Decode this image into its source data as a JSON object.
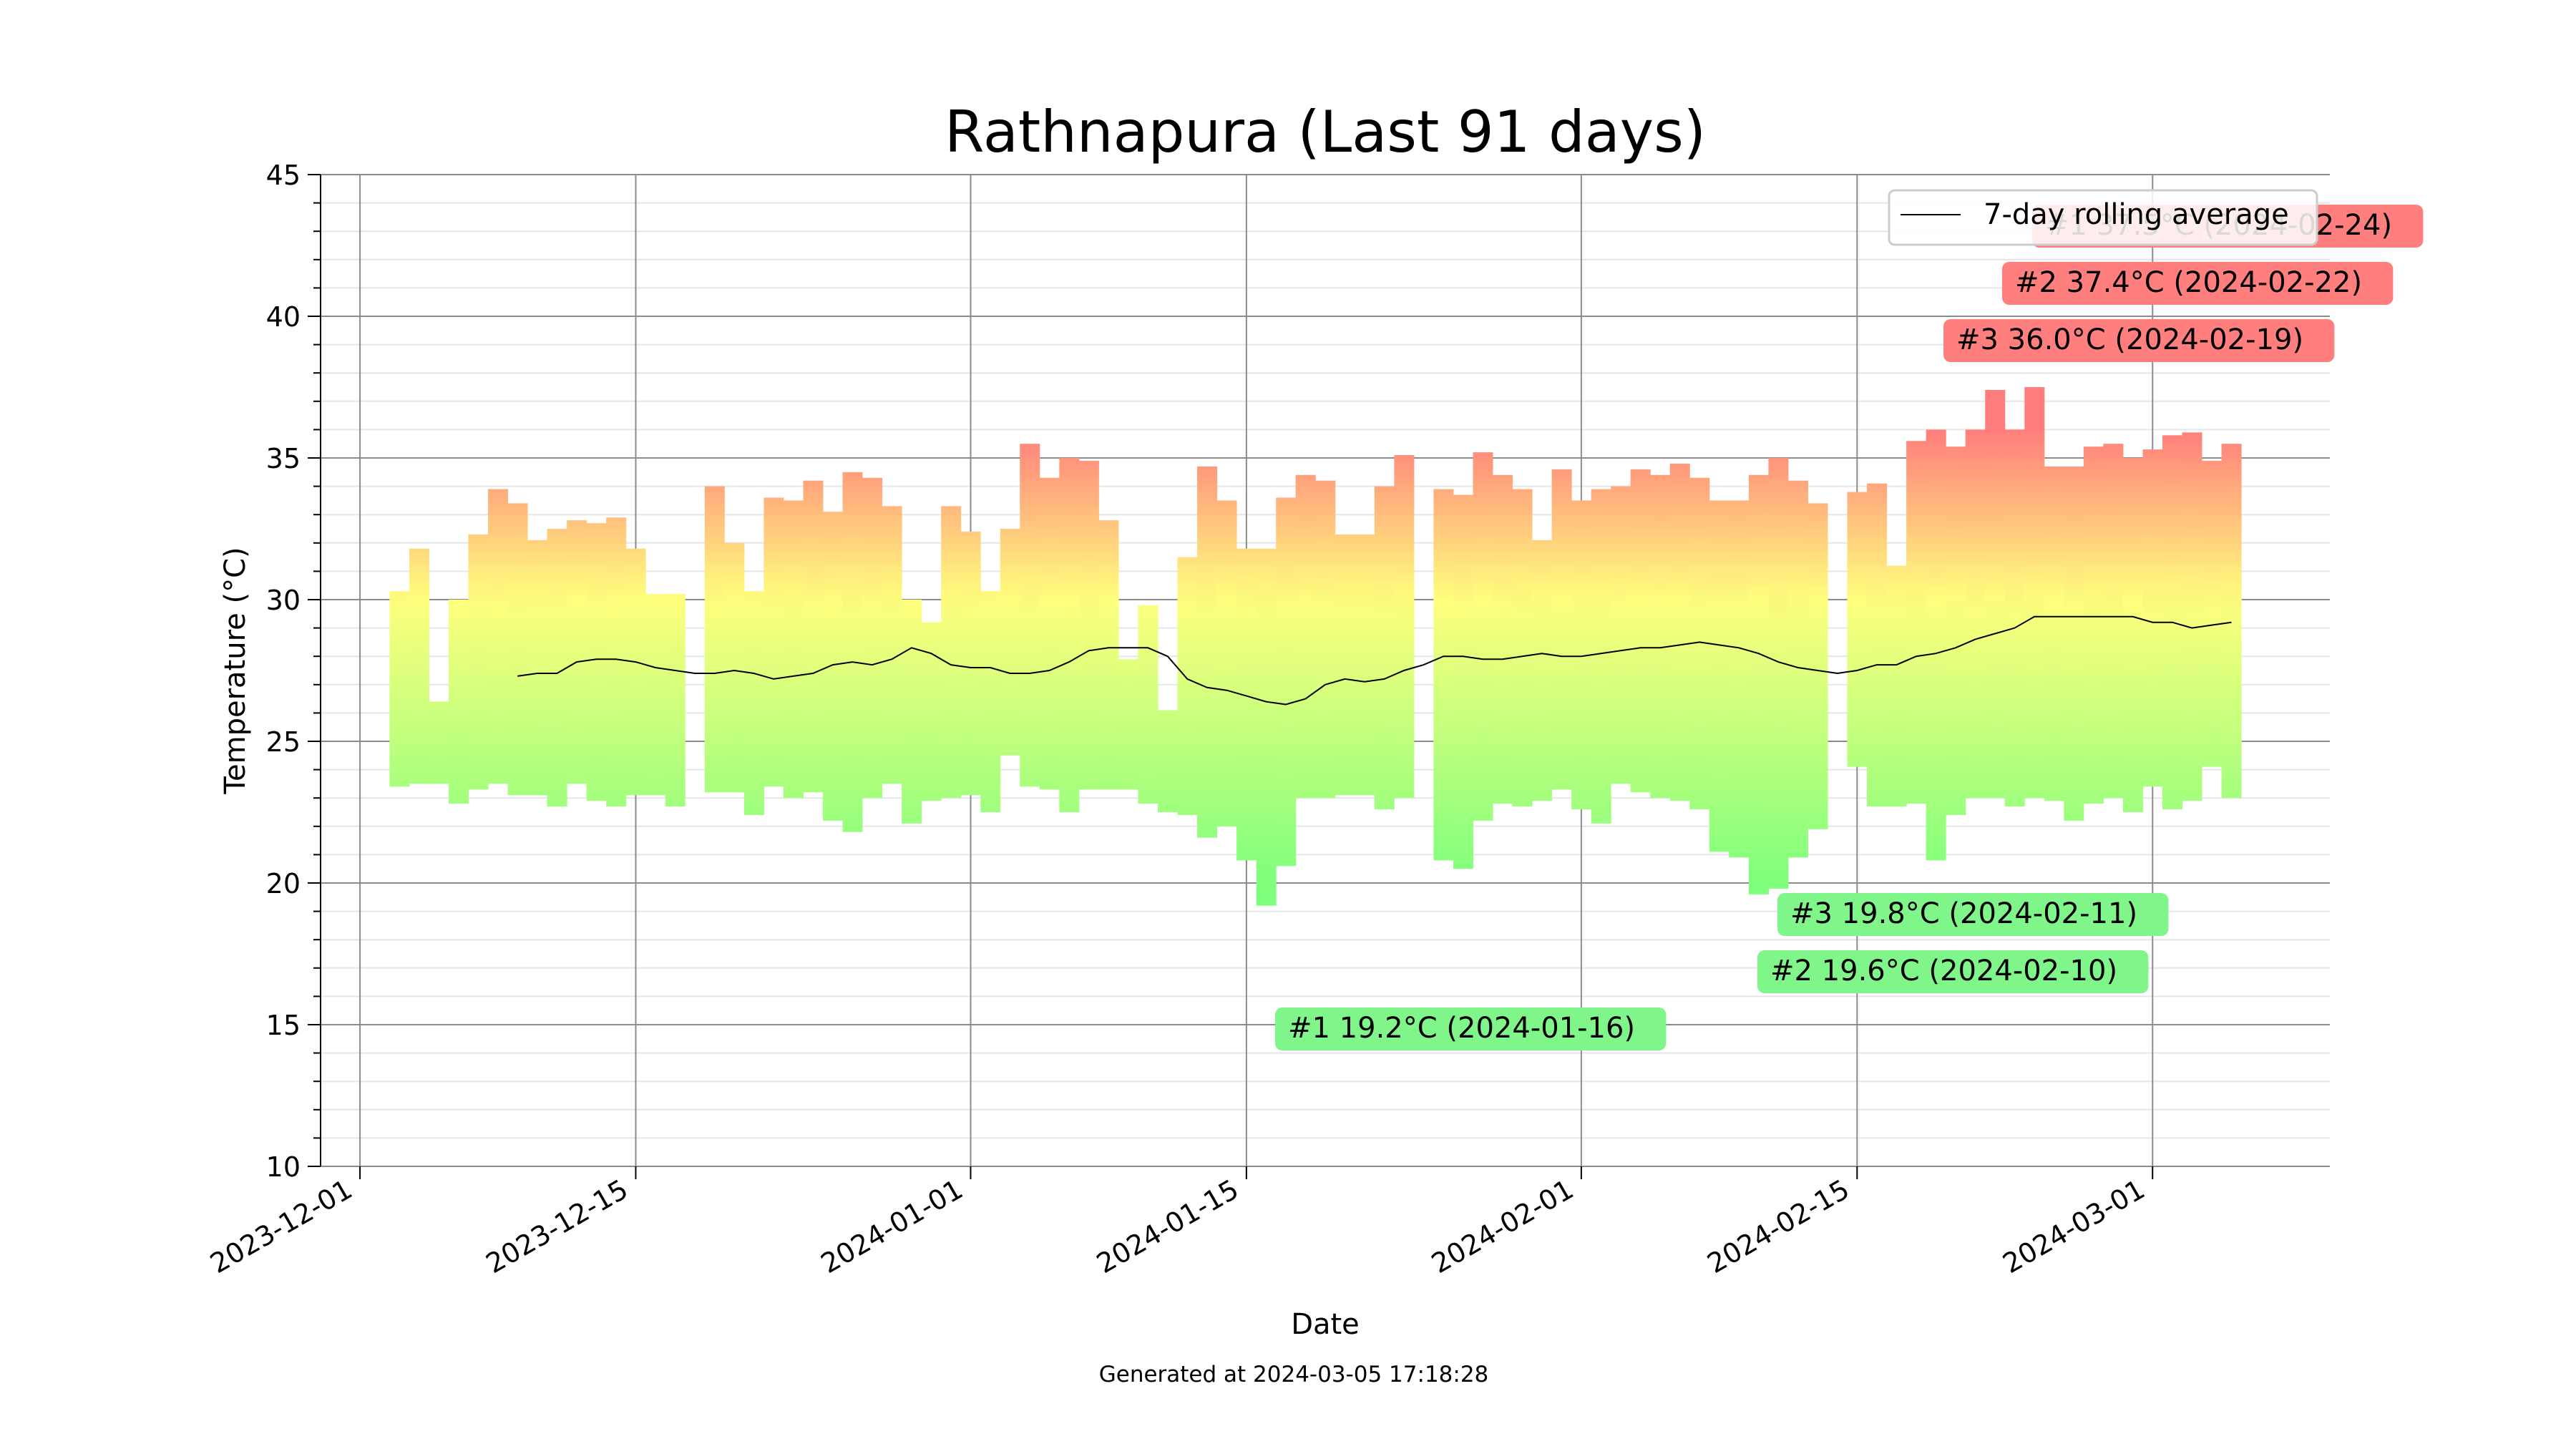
{
  "chart_data": {
    "type": "bar",
    "title": "Rathnapura (Last 91 days)",
    "xlabel": "Date",
    "ylabel": "Temperature (°C)",
    "ylim": [
      10,
      45
    ],
    "xlim": [
      "2023-11-29",
      "2024-03-10"
    ],
    "yticks": [
      "10",
      "15",
      "20",
      "25",
      "30",
      "35",
      "40",
      "45"
    ],
    "xticks": [
      "2023-12-01",
      "2023-12-15",
      "2024-01-01",
      "2024-01-15",
      "2024-02-01",
      "2024-02-15",
      "2024-03-01"
    ],
    "grid": true,
    "legend": {
      "position": "top-right",
      "entries": [
        "7-day rolling average"
      ]
    },
    "footer": "Generated at 2024-03-05 17:18:28",
    "series": [
      {
        "date": "2023-12-03",
        "min": 23.4,
        "max": 30.3
      },
      {
        "date": "2023-12-04",
        "min": 23.5,
        "max": 31.8
      },
      {
        "date": "2023-12-05",
        "min": 23.5,
        "max": 26.4
      },
      {
        "date": "2023-12-06",
        "min": 22.8,
        "max": 30.0
      },
      {
        "date": "2023-12-07",
        "min": 23.3,
        "max": 32.3
      },
      {
        "date": "2023-12-08",
        "min": 23.5,
        "max": 33.9
      },
      {
        "date": "2023-12-09",
        "min": 23.1,
        "max": 33.4
      },
      {
        "date": "2023-12-10",
        "min": 23.1,
        "max": 32.1
      },
      {
        "date": "2023-12-11",
        "min": 22.7,
        "max": 32.5
      },
      {
        "date": "2023-12-12",
        "min": 23.5,
        "max": 32.8
      },
      {
        "date": "2023-12-13",
        "min": 22.9,
        "max": 32.7
      },
      {
        "date": "2023-12-14",
        "min": 22.7,
        "max": 32.9
      },
      {
        "date": "2023-12-15",
        "min": 23.1,
        "max": 31.8
      },
      {
        "date": "2023-12-16",
        "min": 23.1,
        "max": 30.2
      },
      {
        "date": "2023-12-17",
        "min": 22.7,
        "max": 30.2
      },
      {
        "date": "2023-12-19",
        "min": 23.2,
        "max": 34.0
      },
      {
        "date": "2023-12-20",
        "min": 23.2,
        "max": 32.0
      },
      {
        "date": "2023-12-21",
        "min": 22.4,
        "max": 30.3
      },
      {
        "date": "2023-12-22",
        "min": 23.4,
        "max": 33.6
      },
      {
        "date": "2023-12-23",
        "min": 23.0,
        "max": 33.5
      },
      {
        "date": "2023-12-24",
        "min": 23.2,
        "max": 34.2
      },
      {
        "date": "2023-12-25",
        "min": 22.2,
        "max": 33.1
      },
      {
        "date": "2023-12-26",
        "min": 21.8,
        "max": 34.5
      },
      {
        "date": "2023-12-27",
        "min": 23.0,
        "max": 34.3
      },
      {
        "date": "2023-12-28",
        "min": 23.5,
        "max": 33.3
      },
      {
        "date": "2023-12-29",
        "min": 22.1,
        "max": 30.0
      },
      {
        "date": "2023-12-30",
        "min": 22.9,
        "max": 29.2
      },
      {
        "date": "2023-12-31",
        "min": 23.0,
        "max": 33.3
      },
      {
        "date": "2024-01-01",
        "min": 23.1,
        "max": 32.4
      },
      {
        "date": "2024-01-02",
        "min": 22.5,
        "max": 30.3
      },
      {
        "date": "2024-01-03",
        "min": 24.5,
        "max": 32.5
      },
      {
        "date": "2024-01-04",
        "min": 23.4,
        "max": 35.5
      },
      {
        "date": "2024-01-05",
        "min": 23.3,
        "max": 34.3
      },
      {
        "date": "2024-01-06",
        "min": 22.5,
        "max": 35.0
      },
      {
        "date": "2024-01-07",
        "min": 23.3,
        "max": 34.9
      },
      {
        "date": "2024-01-08",
        "min": 23.3,
        "max": 32.8
      },
      {
        "date": "2024-01-09",
        "min": 23.3,
        "max": 27.9
      },
      {
        "date": "2024-01-10",
        "min": 22.8,
        "max": 29.8
      },
      {
        "date": "2024-01-11",
        "min": 22.5,
        "max": 26.1
      },
      {
        "date": "2024-01-12",
        "min": 22.4,
        "max": 31.5
      },
      {
        "date": "2024-01-13",
        "min": 21.6,
        "max": 34.7
      },
      {
        "date": "2024-01-14",
        "min": 22.0,
        "max": 33.5
      },
      {
        "date": "2024-01-15",
        "min": 20.8,
        "max": 31.8
      },
      {
        "date": "2024-01-16",
        "min": 19.2,
        "max": 31.8
      },
      {
        "date": "2024-01-17",
        "min": 20.6,
        "max": 33.6
      },
      {
        "date": "2024-01-18",
        "min": 23.0,
        "max": 34.4
      },
      {
        "date": "2024-01-19",
        "min": 23.0,
        "max": 34.2
      },
      {
        "date": "2024-01-20",
        "min": 23.1,
        "max": 32.3
      },
      {
        "date": "2024-01-21",
        "min": 23.1,
        "max": 32.3
      },
      {
        "date": "2024-01-22",
        "min": 22.6,
        "max": 34.0
      },
      {
        "date": "2024-01-23",
        "min": 23.0,
        "max": 35.1
      },
      {
        "date": "2024-01-25",
        "min": 20.8,
        "max": 33.9
      },
      {
        "date": "2024-01-26",
        "min": 20.5,
        "max": 33.7
      },
      {
        "date": "2024-01-27",
        "min": 22.2,
        "max": 35.2
      },
      {
        "date": "2024-01-28",
        "min": 22.8,
        "max": 34.4
      },
      {
        "date": "2024-01-29",
        "min": 22.7,
        "max": 33.9
      },
      {
        "date": "2024-01-30",
        "min": 22.9,
        "max": 32.1
      },
      {
        "date": "2024-01-31",
        "min": 23.3,
        "max": 34.6
      },
      {
        "date": "2024-02-01",
        "min": 22.6,
        "max": 33.5
      },
      {
        "date": "2024-02-02",
        "min": 22.1,
        "max": 33.9
      },
      {
        "date": "2024-02-03",
        "min": 23.5,
        "max": 34.0
      },
      {
        "date": "2024-02-04",
        "min": 23.2,
        "max": 34.6
      },
      {
        "date": "2024-02-05",
        "min": 23.0,
        "max": 34.4
      },
      {
        "date": "2024-02-06",
        "min": 22.9,
        "max": 34.8
      },
      {
        "date": "2024-02-07",
        "min": 22.6,
        "max": 34.3
      },
      {
        "date": "2024-02-08",
        "min": 21.1,
        "max": 33.5
      },
      {
        "date": "2024-02-09",
        "min": 20.9,
        "max": 33.5
      },
      {
        "date": "2024-02-10",
        "min": 19.6,
        "max": 34.4
      },
      {
        "date": "2024-02-11",
        "min": 19.8,
        "max": 35.0
      },
      {
        "date": "2024-02-12",
        "min": 20.9,
        "max": 34.2
      },
      {
        "date": "2024-02-13",
        "min": 21.9,
        "max": 33.4
      },
      {
        "date": "2024-02-15",
        "min": 24.1,
        "max": 33.8
      },
      {
        "date": "2024-02-16",
        "min": 22.7,
        "max": 34.1
      },
      {
        "date": "2024-02-17",
        "min": 22.7,
        "max": 31.2
      },
      {
        "date": "2024-02-18",
        "min": 22.8,
        "max": 35.6
      },
      {
        "date": "2024-02-19",
        "min": 20.8,
        "max": 36.0
      },
      {
        "date": "2024-02-20",
        "min": 22.4,
        "max": 35.4
      },
      {
        "date": "2024-02-21",
        "min": 23.0,
        "max": 36.0
      },
      {
        "date": "2024-02-22",
        "min": 23.0,
        "max": 37.4
      },
      {
        "date": "2024-02-23",
        "min": 22.7,
        "max": 36.0
      },
      {
        "date": "2024-02-24",
        "min": 23.0,
        "max": 37.5
      },
      {
        "date": "2024-02-25",
        "min": 22.9,
        "max": 34.7
      },
      {
        "date": "2024-02-26",
        "min": 22.2,
        "max": 34.7
      },
      {
        "date": "2024-02-27",
        "min": 22.8,
        "max": 35.4
      },
      {
        "date": "2024-02-28",
        "min": 23.0,
        "max": 35.5
      },
      {
        "date": "2024-02-29",
        "min": 22.5,
        "max": 35.0
      },
      {
        "date": "2024-03-01",
        "min": 23.4,
        "max": 35.3
      },
      {
        "date": "2024-03-02",
        "min": 22.6,
        "max": 35.8
      },
      {
        "date": "2024-03-03",
        "min": 22.9,
        "max": 35.9
      },
      {
        "date": "2024-03-04",
        "min": 24.1,
        "max": 34.9
      },
      {
        "date": "2024-03-05",
        "min": 23.0,
        "max": 35.5
      }
    ],
    "rolling_average": [
      {
        "date": "2023-12-09",
        "value": 27.3
      },
      {
        "date": "2023-12-10",
        "value": 27.4
      },
      {
        "date": "2023-12-11",
        "value": 27.4
      },
      {
        "date": "2023-12-12",
        "value": 27.8
      },
      {
        "date": "2023-12-13",
        "value": 27.9
      },
      {
        "date": "2023-12-14",
        "value": 27.9
      },
      {
        "date": "2023-12-15",
        "value": 27.8
      },
      {
        "date": "2023-12-16",
        "value": 27.6
      },
      {
        "date": "2023-12-17",
        "value": 27.5
      },
      {
        "date": "2023-12-18",
        "value": 27.4
      },
      {
        "date": "2023-12-19",
        "value": 27.4
      },
      {
        "date": "2023-12-20",
        "value": 27.5
      },
      {
        "date": "2023-12-21",
        "value": 27.4
      },
      {
        "date": "2023-12-22",
        "value": 27.2
      },
      {
        "date": "2023-12-23",
        "value": 27.3
      },
      {
        "date": "2023-12-24",
        "value": 27.4
      },
      {
        "date": "2023-12-25",
        "value": 27.7
      },
      {
        "date": "2023-12-26",
        "value": 27.8
      },
      {
        "date": "2023-12-27",
        "value": 27.7
      },
      {
        "date": "2023-12-28",
        "value": 27.9
      },
      {
        "date": "2023-12-29",
        "value": 28.3
      },
      {
        "date": "2023-12-30",
        "value": 28.1
      },
      {
        "date": "2023-12-31",
        "value": 27.7
      },
      {
        "date": "2024-01-01",
        "value": 27.6
      },
      {
        "date": "2024-01-02",
        "value": 27.6
      },
      {
        "date": "2024-01-03",
        "value": 27.4
      },
      {
        "date": "2024-01-04",
        "value": 27.4
      },
      {
        "date": "2024-01-05",
        "value": 27.5
      },
      {
        "date": "2024-01-06",
        "value": 27.8
      },
      {
        "date": "2024-01-07",
        "value": 28.2
      },
      {
        "date": "2024-01-08",
        "value": 28.3
      },
      {
        "date": "2024-01-09",
        "value": 28.3
      },
      {
        "date": "2024-01-10",
        "value": 28.3
      },
      {
        "date": "2024-01-11",
        "value": 28.0
      },
      {
        "date": "2024-01-12",
        "value": 27.2
      },
      {
        "date": "2024-01-13",
        "value": 26.9
      },
      {
        "date": "2024-01-14",
        "value": 26.8
      },
      {
        "date": "2024-01-15",
        "value": 26.6
      },
      {
        "date": "2024-01-16",
        "value": 26.4
      },
      {
        "date": "2024-01-17",
        "value": 26.3
      },
      {
        "date": "2024-01-18",
        "value": 26.5
      },
      {
        "date": "2024-01-19",
        "value": 27.0
      },
      {
        "date": "2024-01-20",
        "value": 27.2
      },
      {
        "date": "2024-01-21",
        "value": 27.1
      },
      {
        "date": "2024-01-22",
        "value": 27.2
      },
      {
        "date": "2024-01-23",
        "value": 27.5
      },
      {
        "date": "2024-01-24",
        "value": 27.7
      },
      {
        "date": "2024-01-25",
        "value": 28.0
      },
      {
        "date": "2024-01-26",
        "value": 28.0
      },
      {
        "date": "2024-01-27",
        "value": 27.9
      },
      {
        "date": "2024-01-28",
        "value": 27.9
      },
      {
        "date": "2024-01-29",
        "value": 28.0
      },
      {
        "date": "2024-01-30",
        "value": 28.1
      },
      {
        "date": "2024-01-31",
        "value": 28.0
      },
      {
        "date": "2024-02-01",
        "value": 28.0
      },
      {
        "date": "2024-02-02",
        "value": 28.1
      },
      {
        "date": "2024-02-03",
        "value": 28.2
      },
      {
        "date": "2024-02-04",
        "value": 28.3
      },
      {
        "date": "2024-02-05",
        "value": 28.3
      },
      {
        "date": "2024-02-06",
        "value": 28.4
      },
      {
        "date": "2024-02-07",
        "value": 28.5
      },
      {
        "date": "2024-02-08",
        "value": 28.4
      },
      {
        "date": "2024-02-09",
        "value": 28.3
      },
      {
        "date": "2024-02-10",
        "value": 28.1
      },
      {
        "date": "2024-02-11",
        "value": 27.8
      },
      {
        "date": "2024-02-12",
        "value": 27.6
      },
      {
        "date": "2024-02-13",
        "value": 27.5
      },
      {
        "date": "2024-02-14",
        "value": 27.4
      },
      {
        "date": "2024-02-15",
        "value": 27.5
      },
      {
        "date": "2024-02-16",
        "value": 27.7
      },
      {
        "date": "2024-02-17",
        "value": 27.7
      },
      {
        "date": "2024-02-18",
        "value": 28.0
      },
      {
        "date": "2024-02-19",
        "value": 28.1
      },
      {
        "date": "2024-02-20",
        "value": 28.3
      },
      {
        "date": "2024-02-21",
        "value": 28.6
      },
      {
        "date": "2024-02-22",
        "value": 28.8
      },
      {
        "date": "2024-02-23",
        "value": 29.0
      },
      {
        "date": "2024-02-24",
        "value": 29.4
      },
      {
        "date": "2024-02-25",
        "value": 29.4
      },
      {
        "date": "2024-02-26",
        "value": 29.4
      },
      {
        "date": "2024-02-27",
        "value": 29.4
      },
      {
        "date": "2024-02-28",
        "value": 29.4
      },
      {
        "date": "2024-02-29",
        "value": 29.4
      },
      {
        "date": "2024-03-01",
        "value": 29.2
      },
      {
        "date": "2024-03-02",
        "value": 29.2
      },
      {
        "date": "2024-03-03",
        "value": 29.0
      },
      {
        "date": "2024-03-04",
        "value": 29.1
      },
      {
        "date": "2024-03-05",
        "value": 29.2
      }
    ],
    "annotations": [
      {
        "kind": "high",
        "text": "#1 37.5°C (2024-02-24)"
      },
      {
        "kind": "high",
        "text": "#2 37.4°C (2024-02-22)"
      },
      {
        "kind": "high",
        "text": "#3 36.0°C (2024-02-19)"
      },
      {
        "kind": "low",
        "text": "#1 19.2°C (2024-01-16)"
      },
      {
        "kind": "low",
        "text": "#2 19.6°C (2024-02-10)"
      },
      {
        "kind": "low",
        "text": "#3 19.8°C (2024-02-11)"
      }
    ],
    "colors": {
      "low_band": "#7dff7d",
      "mid_band": "#ffff7d",
      "high_band": "#ff7d7d",
      "high_annotation_bg": "#ff7f7f",
      "high_annotation_text": "#cc0000",
      "low_annotation_bg": "#7ff58a",
      "low_annotation_text": "#000080",
      "rolling_line": "#000000",
      "major_grid": "#8c8c8c",
      "minor_grid": "#e6e6e6"
    }
  }
}
